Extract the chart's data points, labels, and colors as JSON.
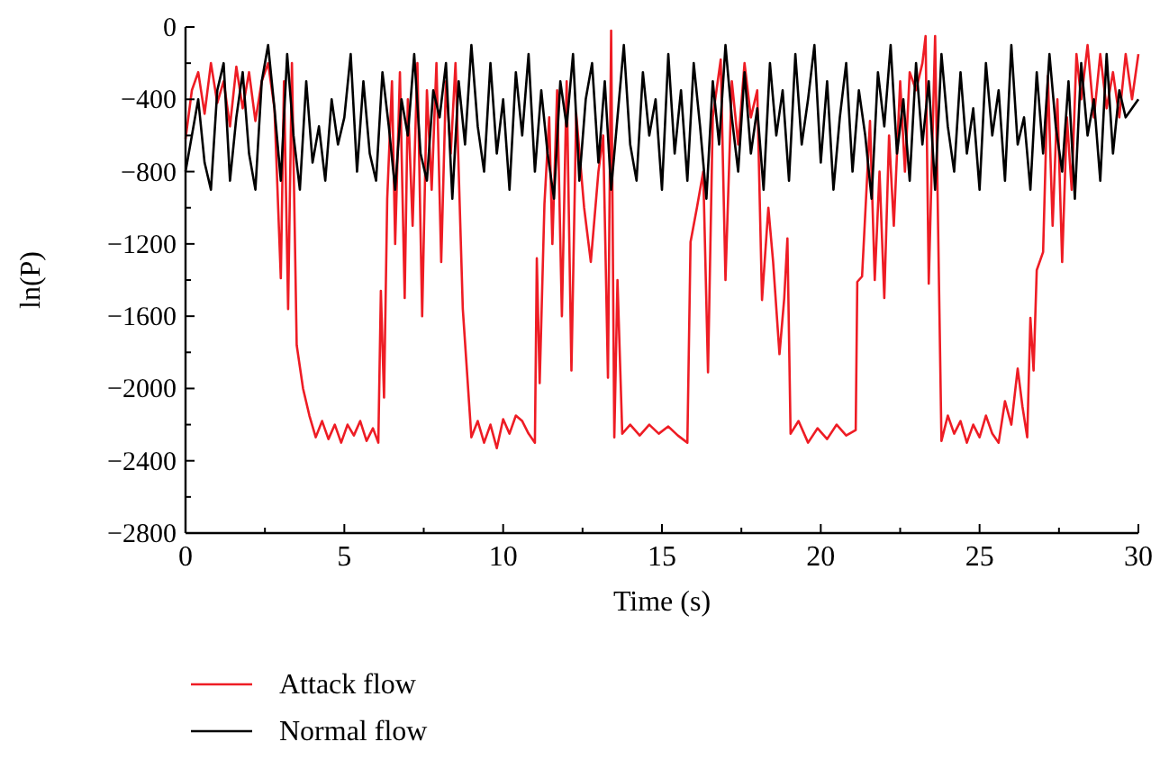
{
  "chart_data": {
    "type": "line",
    "xlabel": "Time (s)",
    "ylabel": "ln(P)",
    "xlim": [
      0,
      30
    ],
    "ylim": [
      -2800,
      0
    ],
    "xticks": [
      0,
      {
        "value": 2.5,
        "label": null
      },
      5,
      {
        "value": 7.5,
        "label": null
      },
      10,
      {
        "value": 12.5,
        "label": null
      },
      15,
      {
        "value": 17.5,
        "label": null
      },
      20,
      {
        "value": 22.5,
        "label": null
      },
      25,
      {
        "value": 27.5,
        "label": null
      },
      30
    ],
    "yticks": [
      -2800,
      {
        "value": -2600,
        "label": null
      },
      -2400,
      {
        "value": -2200,
        "label": null
      },
      -2000,
      {
        "value": -1800,
        "label": null
      },
      -1600,
      {
        "value": -1400,
        "label": null
      },
      -1200,
      {
        "value": -1000,
        "label": null
      },
      -800,
      {
        "value": -600,
        "label": null
      },
      -400,
      {
        "value": -200,
        "label": null
      },
      0
    ],
    "grid": false,
    "legend": "bottom",
    "marker": "none",
    "line_style": "solid",
    "series": [
      {
        "name": "Attack flow",
        "color": "#ee1c24",
        "x": [
          0,
          0.2,
          0.4,
          0.6,
          0.8,
          1.0,
          1.2,
          1.4,
          1.6,
          1.8,
          2.0,
          2.2,
          2.4,
          2.6,
          2.8,
          3.0,
          3.1,
          3.23,
          3.35,
          3.5,
          3.7,
          3.9,
          4.1,
          4.3,
          4.5,
          4.7,
          4.9,
          5.1,
          5.3,
          5.5,
          5.7,
          5.9,
          6.07,
          6.15,
          6.25,
          6.35,
          6.5,
          6.6,
          6.75,
          6.9,
          7.0,
          7.15,
          7.3,
          7.45,
          7.6,
          7.75,
          7.9,
          8.05,
          8.2,
          8.35,
          8.5,
          8.73,
          9.0,
          9.2,
          9.4,
          9.6,
          9.8,
          10.0,
          10.2,
          10.4,
          10.6,
          10.8,
          11.0,
          11.06,
          11.15,
          11.3,
          11.45,
          11.55,
          11.7,
          11.85,
          12.0,
          12.15,
          12.3,
          12.55,
          12.76,
          13.0,
          13.15,
          13.3,
          13.4,
          13.5,
          13.6,
          13.75,
          14.0,
          14.3,
          14.6,
          14.9,
          15.2,
          15.5,
          15.8,
          15.9,
          16.1,
          16.3,
          16.45,
          16.6,
          16.85,
          17.0,
          17.2,
          17.4,
          17.6,
          17.8,
          18.0,
          18.15,
          18.35,
          18.5,
          18.7,
          18.85,
          18.95,
          19.05,
          19.3,
          19.6,
          19.9,
          20.2,
          20.5,
          20.8,
          21.1,
          21.15,
          21.3,
          21.55,
          21.7,
          21.85,
          22.0,
          22.15,
          22.3,
          22.5,
          22.65,
          22.8,
          23.0,
          23.2,
          23.3,
          23.4,
          23.6,
          23.8,
          24.0,
          24.2,
          24.4,
          24.6,
          24.8,
          25.0,
          25.2,
          25.4,
          25.6,
          25.8,
          26.0,
          26.2,
          26.35,
          26.5,
          26.6,
          26.7,
          26.8,
          27.0,
          27.15,
          27.3,
          27.45,
          27.6,
          27.75,
          27.9,
          28.05,
          28.2,
          28.4,
          28.6,
          28.8,
          29.0,
          29.2,
          29.4,
          29.6,
          29.8,
          30.0
        ],
        "values": [
          -620,
          -350,
          -250,
          -480,
          -200,
          -420,
          -300,
          -550,
          -220,
          -450,
          -250,
          -520,
          -300,
          -200,
          -450,
          -1390,
          -300,
          -1560,
          -200,
          -1760,
          -2000,
          -2150,
          -2270,
          -2180,
          -2280,
          -2200,
          -2300,
          -2200,
          -2260,
          -2180,
          -2290,
          -2220,
          -2300,
          -1460,
          -2050,
          -950,
          -300,
          -1200,
          -250,
          -1500,
          -400,
          -1100,
          -200,
          -1600,
          -350,
          -900,
          -200,
          -1300,
          -300,
          -700,
          -200,
          -1560,
          -2270,
          -2180,
          -2300,
          -2200,
          -2330,
          -2170,
          -2250,
          -2150,
          -2180,
          -2250,
          -2300,
          -1280,
          -1970,
          -980,
          -500,
          -1200,
          -350,
          -1600,
          -300,
          -1900,
          -480,
          -1000,
          -1300,
          -800,
          -600,
          -1940,
          -20,
          -2270,
          -1400,
          -2250,
          -2200,
          -2260,
          -2200,
          -2250,
          -2210,
          -2260,
          -2300,
          -1190,
          -1000,
          -800,
          -1910,
          -500,
          -180,
          -1400,
          -300,
          -650,
          -200,
          -500,
          -350,
          -1510,
          -1000,
          -1300,
          -1810,
          -1500,
          -1170,
          -2250,
          -2180,
          -2300,
          -2220,
          -2280,
          -2200,
          -2260,
          -2230,
          -1410,
          -1380,
          -520,
          -1400,
          -800,
          -1500,
          -600,
          -1100,
          -300,
          -800,
          -250,
          -350,
          -200,
          -50,
          -1420,
          -50,
          -2290,
          -2150,
          -2250,
          -2180,
          -2300,
          -2200,
          -2270,
          -2150,
          -2250,
          -2300,
          -2070,
          -2200,
          -1890,
          -2100,
          -2270,
          -1610,
          -1900,
          -1345,
          -1245,
          -270,
          -1100,
          -400,
          -1300,
          -500,
          -900,
          -150,
          -400,
          -100,
          -500,
          -150,
          -450,
          -250,
          -500,
          -150,
          -400,
          -150
        ]
      },
      {
        "name": "Normal flow",
        "color": "#000000",
        "x": [
          0,
          0.2,
          0.4,
          0.6,
          0.8,
          1.0,
          1.2,
          1.4,
          1.6,
          1.8,
          2.0,
          2.2,
          2.4,
          2.6,
          2.8,
          3.0,
          3.2,
          3.4,
          3.6,
          3.8,
          4.0,
          4.2,
          4.4,
          4.6,
          4.8,
          5.0,
          5.2,
          5.4,
          5.6,
          5.8,
          6.0,
          6.2,
          6.4,
          6.6,
          6.8,
          7.0,
          7.2,
          7.4,
          7.6,
          7.8,
          8.0,
          8.2,
          8.4,
          8.6,
          8.8,
          9.0,
          9.2,
          9.4,
          9.6,
          9.8,
          10.0,
          10.2,
          10.4,
          10.6,
          10.8,
          11.0,
          11.2,
          11.4,
          11.6,
          11.8,
          12.0,
          12.2,
          12.4,
          12.6,
          12.8,
          13.0,
          13.2,
          13.4,
          13.6,
          13.8,
          14.0,
          14.2,
          14.4,
          14.6,
          14.8,
          15.0,
          15.2,
          15.4,
          15.6,
          15.8,
          16.0,
          16.2,
          16.4,
          16.6,
          16.8,
          17.0,
          17.2,
          17.4,
          17.6,
          17.8,
          18.0,
          18.2,
          18.4,
          18.6,
          18.8,
          19.0,
          19.2,
          19.4,
          19.6,
          19.8,
          20.0,
          20.2,
          20.4,
          20.6,
          20.8,
          21.0,
          21.2,
          21.4,
          21.6,
          21.8,
          22.0,
          22.2,
          22.4,
          22.6,
          22.8,
          23.0,
          23.2,
          23.4,
          23.6,
          23.8,
          24.0,
          24.2,
          24.4,
          24.6,
          24.8,
          25.0,
          25.2,
          25.4,
          25.6,
          25.8,
          26.0,
          26.2,
          26.4,
          26.6,
          26.8,
          27.0,
          27.2,
          27.4,
          27.6,
          27.8,
          28.0,
          28.2,
          28.4,
          28.6,
          28.8,
          29.0,
          29.2,
          29.4,
          29.6,
          29.8,
          30.0
        ],
        "values": [
          -800,
          -600,
          -400,
          -750,
          -900,
          -350,
          -200,
          -850,
          -500,
          -250,
          -700,
          -900,
          -300,
          -100,
          -450,
          -850,
          -150,
          -600,
          -900,
          -300,
          -750,
          -550,
          -850,
          -400,
          -650,
          -500,
          -150,
          -800,
          -300,
          -700,
          -850,
          -250,
          -550,
          -900,
          -400,
          -600,
          -150,
          -700,
          -850,
          -350,
          -500,
          -200,
          -950,
          -300,
          -650,
          -100,
          -550,
          -800,
          -200,
          -700,
          -400,
          -900,
          -250,
          -600,
          -150,
          -800,
          -350,
          -700,
          -950,
          -300,
          -550,
          -150,
          -850,
          -400,
          -200,
          -750,
          -300,
          -900,
          -500,
          -100,
          -650,
          -850,
          -250,
          -600,
          -400,
          -900,
          -150,
          -700,
          -350,
          -850,
          -200,
          -550,
          -950,
          -300,
          -650,
          -100,
          -500,
          -800,
          -250,
          -700,
          -450,
          -900,
          -200,
          -600,
          -350,
          -850,
          -150,
          -650,
          -400,
          -100,
          -750,
          -300,
          -900,
          -500,
          -200,
          -800,
          -350,
          -600,
          -950,
          -250,
          -550,
          -100,
          -700,
          -400,
          -850,
          -200,
          -650,
          -300,
          -900,
          -150,
          -550,
          -800,
          -250,
          -700,
          -450,
          -900,
          -200,
          -600,
          -350,
          -850,
          -100,
          -650,
          -500,
          -900,
          -250,
          -700,
          -150,
          -550,
          -800,
          -300,
          -950,
          -200,
          -600,
          -400,
          -850,
          -150,
          -700,
          -350,
          -500,
          -450,
          -400
        ]
      }
    ]
  }
}
